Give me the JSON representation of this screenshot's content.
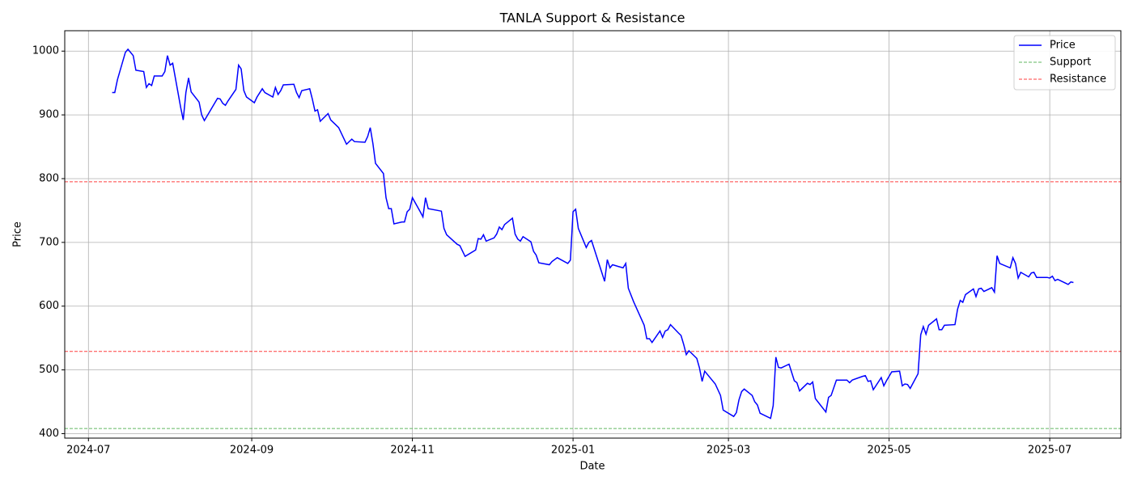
{
  "chart_data": {
    "type": "line",
    "title": "TANLA Support & Resistance",
    "x_label": "Date",
    "y_label": "Price",
    "x": [
      "2024-07-10",
      "2024-07-11",
      "2024-07-12",
      "2024-07-15",
      "2024-07-16",
      "2024-07-18",
      "2024-07-19",
      "2024-07-22",
      "2024-07-23",
      "2024-07-24",
      "2024-07-25",
      "2024-07-26",
      "2024-07-29",
      "2024-07-30",
      "2024-07-31",
      "2024-08-01",
      "2024-08-02",
      "2024-08-05",
      "2024-08-06",
      "2024-08-07",
      "2024-08-08",
      "2024-08-09",
      "2024-08-12",
      "2024-08-13",
      "2024-08-14",
      "2024-08-16",
      "2024-08-19",
      "2024-08-20",
      "2024-08-21",
      "2024-08-22",
      "2024-08-23",
      "2024-08-26",
      "2024-08-27",
      "2024-08-28",
      "2024-08-29",
      "2024-08-30",
      "2024-09-02",
      "2024-09-03",
      "2024-09-05",
      "2024-09-06",
      "2024-09-09",
      "2024-09-10",
      "2024-09-11",
      "2024-09-12",
      "2024-09-13",
      "2024-09-17",
      "2024-09-18",
      "2024-09-19",
      "2024-09-20",
      "2024-09-23",
      "2024-09-24",
      "2024-09-25",
      "2024-09-26",
      "2024-09-27",
      "2024-09-30",
      "2024-10-01",
      "2024-10-03",
      "2024-10-04",
      "2024-10-07",
      "2024-10-09",
      "2024-10-10",
      "2024-10-14",
      "2024-10-15",
      "2024-10-16",
      "2024-10-17",
      "2024-10-18",
      "2024-10-21",
      "2024-10-22",
      "2024-10-23",
      "2024-10-24",
      "2024-10-25",
      "2024-10-28",
      "2024-10-29",
      "2024-10-30",
      "2024-10-31",
      "2024-11-01",
      "2024-11-04",
      "2024-11-05",
      "2024-11-06",
      "2024-11-07",
      "2024-11-12",
      "2024-11-13",
      "2024-11-14",
      "2024-11-18",
      "2024-11-19",
      "2024-11-21",
      "2024-11-25",
      "2024-11-26",
      "2024-11-27",
      "2024-11-28",
      "2024-11-29",
      "2024-12-02",
      "2024-12-03",
      "2024-12-04",
      "2024-12-05",
      "2024-12-06",
      "2024-12-09",
      "2024-12-10",
      "2024-12-11",
      "2024-12-12",
      "2024-12-13",
      "2024-12-16",
      "2024-12-17",
      "2024-12-18",
      "2024-12-19",
      "2024-12-23",
      "2024-12-24",
      "2024-12-26",
      "2024-12-30",
      "2024-12-31",
      "2025-01-01",
      "2025-01-02",
      "2025-01-03",
      "2025-01-06",
      "2025-01-07",
      "2025-01-08",
      "2025-01-13",
      "2025-01-14",
      "2025-01-15",
      "2025-01-16",
      "2025-01-20",
      "2025-01-21",
      "2025-01-22",
      "2025-01-24",
      "2025-01-28",
      "2025-01-29",
      "2025-01-30",
      "2025-01-31",
      "2025-02-03",
      "2025-02-04",
      "2025-02-05",
      "2025-02-06",
      "2025-02-07",
      "2025-02-10",
      "2025-02-11",
      "2025-02-12",
      "2025-02-13",
      "2025-02-14",
      "2025-02-17",
      "2025-02-18",
      "2025-02-19",
      "2025-02-20",
      "2025-02-24",
      "2025-02-26",
      "2025-02-27",
      "2025-03-03",
      "2025-03-04",
      "2025-03-05",
      "2025-03-06",
      "2025-03-07",
      "2025-03-10",
      "2025-03-11",
      "2025-03-12",
      "2025-03-13",
      "2025-03-17",
      "2025-03-18",
      "2025-03-19",
      "2025-03-20",
      "2025-03-21",
      "2025-03-24",
      "2025-03-26",
      "2025-03-27",
      "2025-03-28",
      "2025-03-31",
      "2025-04-01",
      "2025-04-02",
      "2025-04-03",
      "2025-04-07",
      "2025-04-08",
      "2025-04-09",
      "2025-04-11",
      "2025-04-15",
      "2025-04-16",
      "2025-04-17",
      "2025-04-21",
      "2025-04-22",
      "2025-04-23",
      "2025-04-24",
      "2025-04-25",
      "2025-04-28",
      "2025-04-29",
      "2025-04-30",
      "2025-05-02",
      "2025-05-05",
      "2025-05-06",
      "2025-05-07",
      "2025-05-08",
      "2025-05-09",
      "2025-05-12",
      "2025-05-13",
      "2025-05-14",
      "2025-05-15",
      "2025-05-16",
      "2025-05-19",
      "2025-05-20",
      "2025-05-21",
      "2025-05-22",
      "2025-05-26",
      "2025-05-27",
      "2025-05-28",
      "2025-05-29",
      "2025-05-30",
      "2025-06-02",
      "2025-06-03",
      "2025-06-04",
      "2025-06-05",
      "2025-06-06",
      "2025-06-09",
      "2025-06-10",
      "2025-06-11",
      "2025-06-12",
      "2025-06-16",
      "2025-06-17",
      "2025-06-18",
      "2025-06-19",
      "2025-06-20",
      "2025-06-23",
      "2025-06-24",
      "2025-06-25",
      "2025-06-26",
      "2025-06-30",
      "2025-07-01",
      "2025-07-02",
      "2025-07-03",
      "2025-07-04",
      "2025-07-07",
      "2025-07-08",
      "2025-07-09",
      "2025-07-10"
    ],
    "series": [
      {
        "name": "Price",
        "color": "#0000ff",
        "values": [
          935,
          935,
          955,
          998,
          1003,
          993,
          970,
          968,
          943,
          949,
          946,
          961,
          961,
          968,
          993,
          978,
          981,
          912,
          892,
          935,
          958,
          936,
          920,
          900,
          891,
          905,
          926,
          925,
          918,
          915,
          922,
          940,
          978,
          972,
          938,
          928,
          919,
          928,
          941,
          935,
          928,
          943,
          932,
          938,
          947,
          948,
          935,
          927,
          938,
          941,
          925,
          906,
          908,
          890,
          902,
          892,
          884,
          880,
          854,
          862,
          858,
          857,
          866,
          880,
          855,
          824,
          808,
          770,
          753,
          753,
          729,
          732,
          732,
          748,
          752,
          770,
          748,
          740,
          770,
          753,
          749,
          722,
          712,
          697,
          695,
          678,
          688,
          706,
          705,
          712,
          702,
          707,
          713,
          724,
          720,
          728,
          738,
          713,
          705,
          702,
          709,
          701,
          686,
          680,
          668,
          665,
          670,
          676,
          667,
          672,
          748,
          752,
          722,
          692,
          700,
          703,
          639,
          673,
          660,
          665,
          660,
          667,
          628,
          607,
          570,
          549,
          549,
          543,
          561,
          551,
          561,
          563,
          571,
          558,
          554,
          540,
          524,
          530,
          518,
          503,
          482,
          498,
          478,
          460,
          437,
          427,
          433,
          453,
          466,
          470,
          460,
          450,
          445,
          432,
          424,
          444,
          520,
          504,
          503,
          509,
          483,
          480,
          467,
          479,
          477,
          481,
          455,
          434,
          457,
          460,
          484,
          484,
          480,
          484,
          490,
          491,
          482,
          483,
          469,
          488,
          475,
          483,
          497,
          498,
          475,
          478,
          477,
          471,
          494,
          555,
          568,
          556,
          570,
          580,
          563,
          563,
          570,
          571,
          595,
          609,
          606,
          618,
          627,
          615,
          627,
          628,
          623,
          629,
          622,
          679,
          667,
          660,
          676,
          667,
          644,
          653,
          646,
          652,
          653,
          645,
          645,
          644,
          647,
          640,
          642,
          636,
          634,
          638,
          637
        ]
      }
    ],
    "lines": [
      {
        "name": "Support",
        "color": "#2ca02c",
        "values": [
          408
        ]
      },
      {
        "name": "Resistance",
        "color": "#ff0000",
        "values": [
          529,
          795
        ]
      }
    ],
    "xlim": [
      "2024-06-22",
      "2025-07-28"
    ],
    "xticks": [
      {
        "value": "2024-07-01",
        "label": "2024-07"
      },
      {
        "value": "2024-09-01",
        "label": "2024-09"
      },
      {
        "value": "2024-11-01",
        "label": "2024-11"
      },
      {
        "value": "2025-01-01",
        "label": "2025-01"
      },
      {
        "value": "2025-03-01",
        "label": "2025-03"
      },
      {
        "value": "2025-05-01",
        "label": "2025-05"
      },
      {
        "value": "2025-07-01",
        "label": "2025-07"
      }
    ],
    "ylim": [
      393,
      1032
    ],
    "yticks": [
      400,
      500,
      600,
      700,
      800,
      900,
      1000
    ],
    "grid": true,
    "legend": "upper right"
  }
}
